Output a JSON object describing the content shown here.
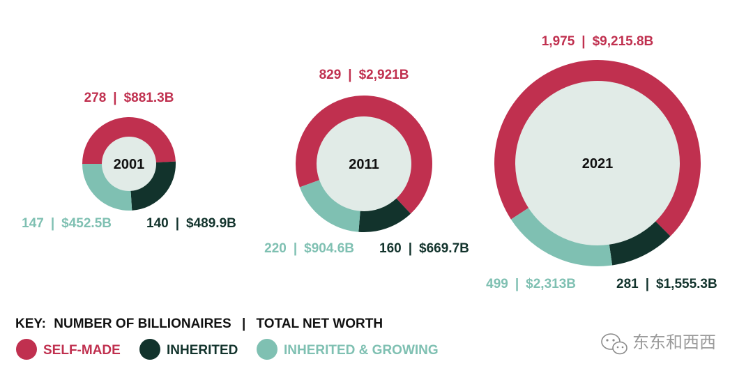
{
  "colors": {
    "self_made": "#c0304f",
    "inherited": "#12332c",
    "inherited_growing": "#7fc0b2",
    "center_fill": "#e1ebe7",
    "year_text": "#111111"
  },
  "chart_data": [
    {
      "type": "donut",
      "center_label": "2001",
      "segments": [
        {
          "name": "SELF-MADE",
          "count": 278,
          "count_label": "278",
          "worth_label": "$881.3B",
          "worth": 881.3
        },
        {
          "name": "INHERITED",
          "count": 140,
          "count_label": "140",
          "worth_label": "$489.9B",
          "worth": 489.9
        },
        {
          "name": "INHERITED & GROWING",
          "count": 147,
          "count_label": "147",
          "worth_label": "$452.5B",
          "worth": 452.5
        }
      ]
    },
    {
      "type": "donut",
      "center_label": "2011",
      "segments": [
        {
          "name": "SELF-MADE",
          "count": 829,
          "count_label": "829",
          "worth_label": "$2,921B",
          "worth": 2921
        },
        {
          "name": "INHERITED",
          "count": 160,
          "count_label": "160",
          "worth_label": "$669.7B",
          "worth": 669.7
        },
        {
          "name": "INHERITED & GROWING",
          "count": 220,
          "count_label": "220",
          "worth_label": "$904.6B",
          "worth": 904.6
        }
      ]
    },
    {
      "type": "donut",
      "center_label": "2021",
      "segments": [
        {
          "name": "SELF-MADE",
          "count": 1975,
          "count_label": "1,975",
          "worth_label": "$9,215.8B",
          "worth": 9215.8
        },
        {
          "name": "INHERITED",
          "count": 281,
          "count_label": "281",
          "worth_label": "$1,555.3B",
          "worth": 1555.3
        },
        {
          "name": "INHERITED & GROWING",
          "count": 499,
          "count_label": "499",
          "worth_label": "$2,313B",
          "worth": 2313
        }
      ]
    }
  ],
  "key": {
    "prefix": "KEY:",
    "text": "NUMBER OF BILLIONAIRES",
    "separator": "|",
    "text2": "TOTAL NET WORTH",
    "items": [
      {
        "label": "SELF-MADE",
        "color_key": "self_made"
      },
      {
        "label": "INHERITED",
        "color_key": "inherited"
      },
      {
        "label": "INHERITED & GROWING",
        "color_key": "inherited_growing"
      }
    ]
  },
  "watermark": {
    "text": "东东和西西",
    "icon": "wechat-icon"
  },
  "label_separator": "|"
}
